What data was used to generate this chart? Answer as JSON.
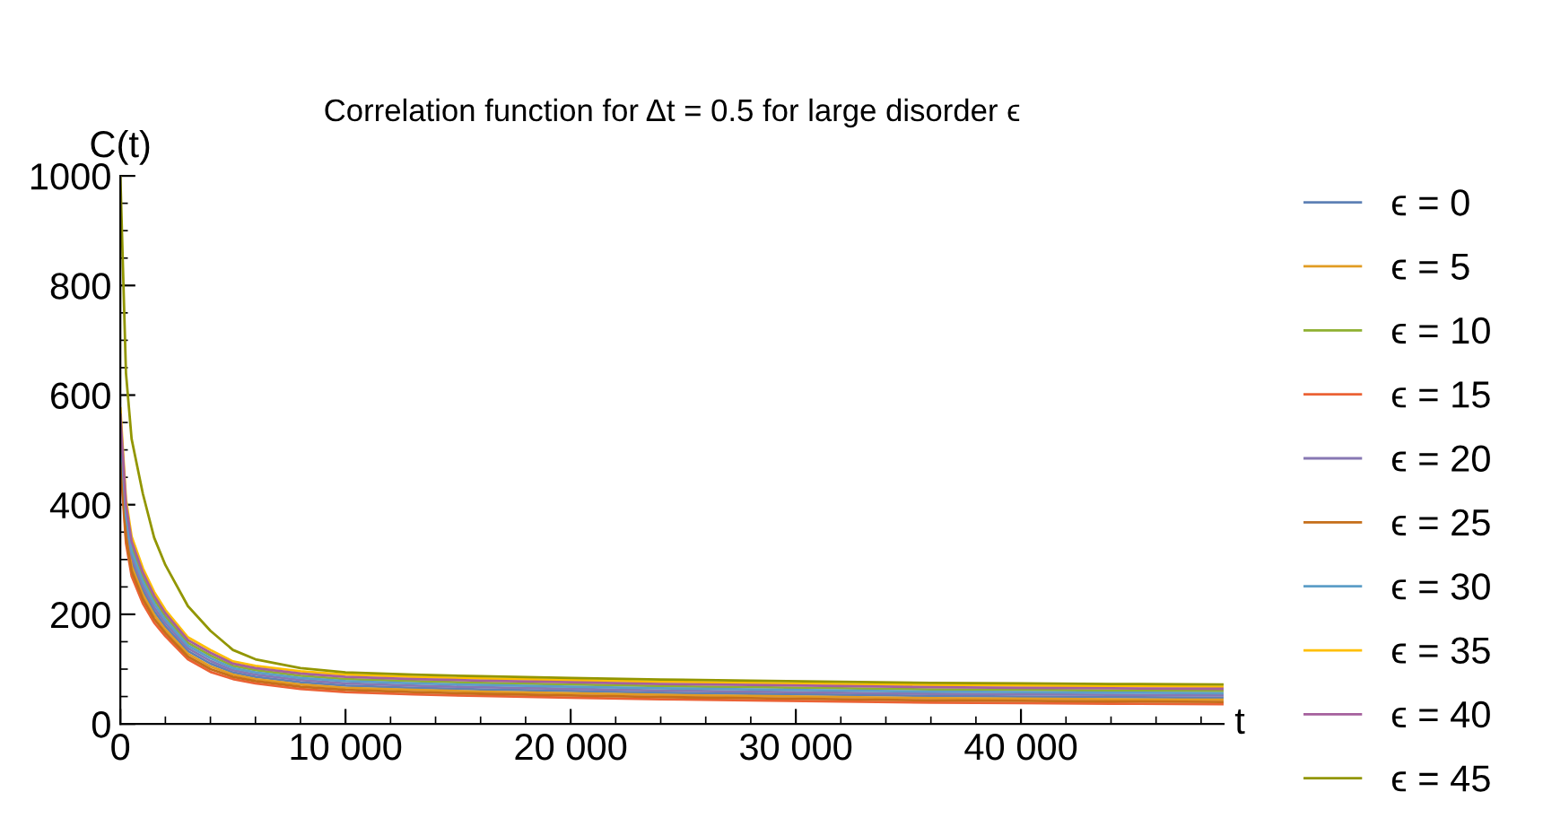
{
  "chart_data": {
    "type": "line",
    "title": "Correlation function for Δt = 0.5 for large disorder ϵ",
    "xlabel": "t",
    "ylabel": "C(t)",
    "x": [
      0,
      250,
      500,
      1000,
      1500,
      2000,
      3000,
      4000,
      5000,
      6000,
      8000,
      10000,
      13000,
      16000,
      20000,
      24000,
      28000,
      32000,
      36000,
      40000,
      44000,
      49000
    ],
    "series": [
      {
        "name": "ϵ = 0",
        "color": "#5e81b5",
        "values": [
          516,
          360,
          297,
          244,
          206,
          178,
          133,
          110,
          94,
          86,
          76,
          70,
          66,
          63,
          60,
          57,
          55,
          53,
          51,
          50,
          49,
          48
        ]
      },
      {
        "name": "ϵ = 5",
        "color": "#e19c24",
        "values": [
          504,
          350,
          288,
          236,
          199,
          172,
          128,
          105,
          90,
          82,
          72,
          66,
          62,
          59,
          56,
          53,
          51,
          49,
          47,
          46,
          45,
          44
        ]
      },
      {
        "name": "ϵ = 10",
        "color": "#8fb032",
        "values": [
          552,
          390,
          324,
          268,
          227,
          196,
          148,
          125,
          106,
          98,
          88,
          82,
          78,
          75,
          72,
          69,
          67,
          65,
          63,
          62,
          61,
          60
        ]
      },
      {
        "name": "ϵ = 15",
        "color": "#eb6235",
        "values": [
          480,
          330,
          270,
          220,
          185,
          160,
          118,
          95,
          82,
          74,
          64,
          58,
          54,
          51,
          48,
          45,
          43,
          41,
          39,
          38,
          37,
          36
        ]
      },
      {
        "name": "ϵ = 20",
        "color": "#8778b3",
        "values": [
          528,
          370,
          306,
          252,
          213,
          184,
          138,
          115,
          98,
          90,
          80,
          74,
          70,
          67,
          64,
          61,
          59,
          57,
          55,
          54,
          53,
          52
        ]
      },
      {
        "name": "ϵ = 25",
        "color": "#c56e1a",
        "values": [
          492,
          340,
          279,
          228,
          192,
          166,
          123,
          100,
          86,
          78,
          68,
          62,
          58,
          55,
          52,
          49,
          47,
          45,
          43,
          42,
          41,
          40
        ]
      },
      {
        "name": "ϵ = 30",
        "color": "#5d9ec7",
        "values": [
          540,
          380,
          315,
          260,
          220,
          190,
          143,
          120,
          102,
          94,
          84,
          78,
          74,
          71,
          68,
          65,
          63,
          61,
          59,
          58,
          57,
          56
        ]
      },
      {
        "name": "ϵ = 35",
        "color": "#ffbf00",
        "values": [
          576,
          410,
          342,
          284,
          241,
          208,
          158,
          135,
          114,
          106,
          96,
          90,
          86,
          83,
          80,
          77,
          75,
          73,
          71,
          70,
          69,
          68
        ]
      },
      {
        "name": "ϵ = 40",
        "color": "#a5609d",
        "values": [
          564,
          400,
          333,
          276,
          234,
          202,
          153,
          130,
          110,
          102,
          92,
          86,
          82,
          79,
          76,
          73,
          71,
          69,
          67,
          66,
          65,
          64
        ]
      },
      {
        "name": "ϵ = 45",
        "color": "#929600",
        "values": [
          1000,
          640,
          520,
          420,
          340,
          290,
          215,
          170,
          135,
          118,
          102,
          94,
          90,
          87,
          84,
          81,
          79,
          77,
          75,
          74,
          73,
          72
        ]
      }
    ],
    "xlim": [
      0,
      49000
    ],
    "ylim": [
      0,
      1000
    ],
    "xticks": [
      0,
      {
        "value": 10000,
        "label": "10 000"
      },
      {
        "value": 20000,
        "label": "20 000"
      },
      {
        "value": 30000,
        "label": "30 000"
      },
      {
        "value": 40000,
        "label": "40 000"
      }
    ],
    "yticks": [
      0,
      200,
      400,
      600,
      800,
      1000
    ],
    "legend": "right",
    "line_style": "solid"
  }
}
